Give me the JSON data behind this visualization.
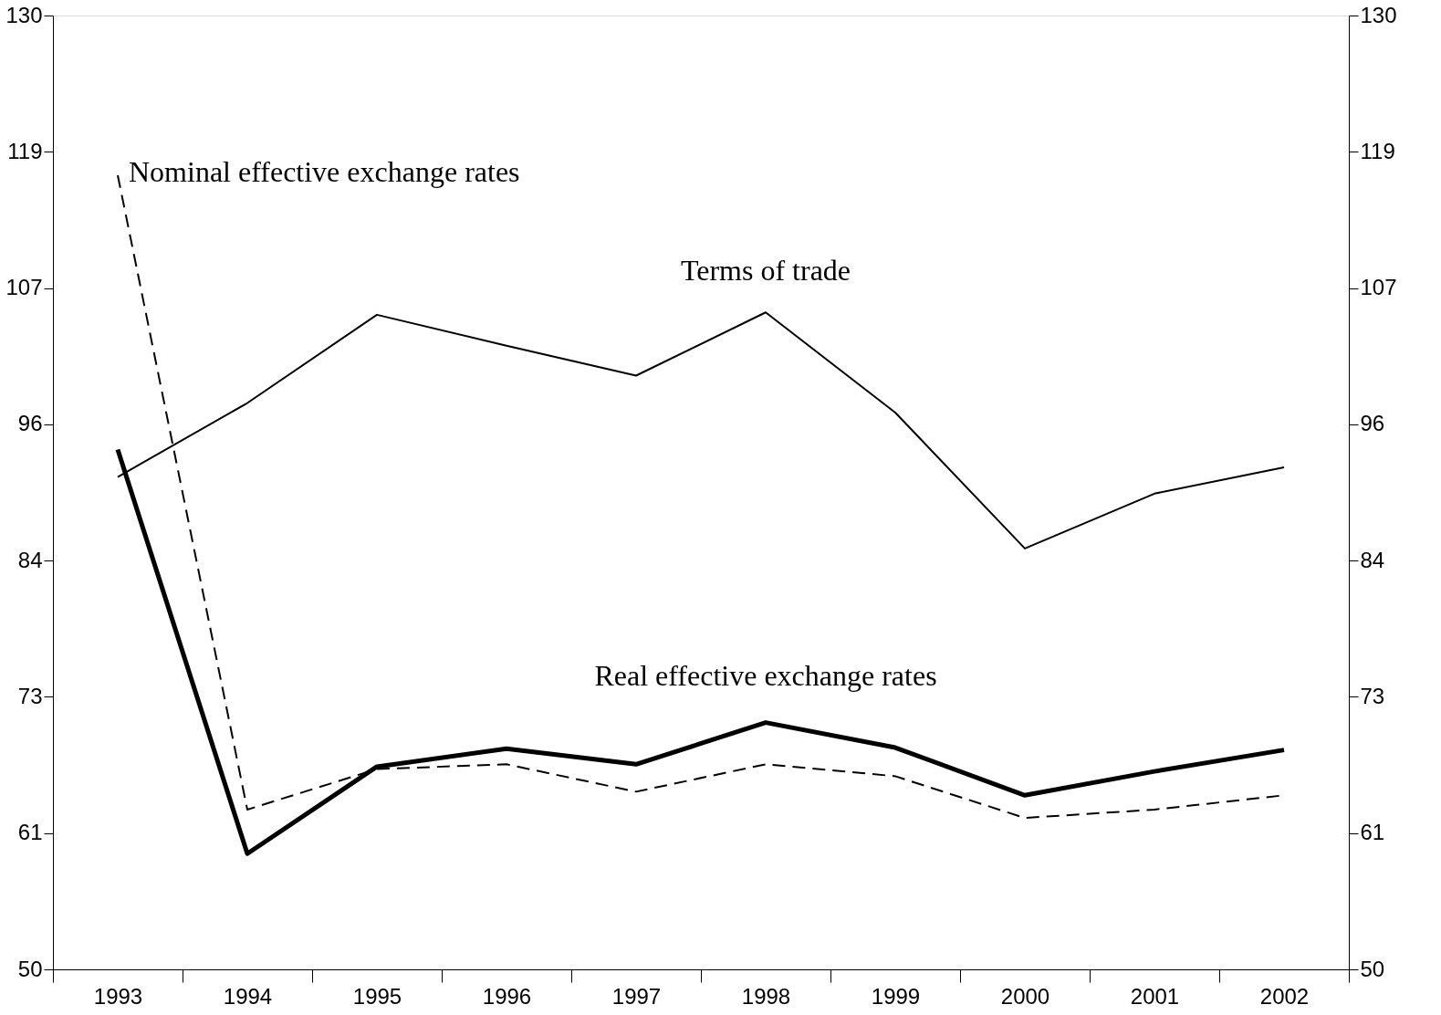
{
  "chart_data": {
    "type": "line",
    "categories": [
      "1993",
      "1994",
      "1995",
      "1996",
      "1997",
      "1998",
      "1999",
      "2000",
      "2001",
      "2002"
    ],
    "series": [
      {
        "name": "Terms of trade",
        "color": "#000000",
        "line_style": "solid",
        "values": [
          91.3,
          97.5,
          104.9,
          102.3,
          99.8,
          105.1,
          96.7,
          85.3,
          89.9,
          92.1
        ]
      },
      {
        "name": "Real effective exchange rates",
        "color": "#000000",
        "line_style": "solid",
        "values": [
          93.6,
          59.7,
          67.0,
          68.5,
          67.2,
          70.7,
          68.6,
          64.6,
          66.6,
          68.4
        ]
      },
      {
        "name": "Nominal effective exchange rates",
        "color": "#000000",
        "line_style": "dashed",
        "values": [
          116.6,
          63.4,
          66.8,
          67.2,
          64.9,
          67.2,
          66.2,
          62.7,
          63.4,
          64.6
        ]
      }
    ],
    "ylim": [
      50,
      130
    ],
    "yticks": [
      50,
      {
        "value": 61.43,
        "label": "61"
      },
      {
        "value": 72.86,
        "label": "73"
      },
      {
        "value": 84.29,
        "label": "84"
      },
      {
        "value": 95.71,
        "label": "96"
      },
      {
        "value": 107.14,
        "label": "107"
      },
      {
        "value": 118.57,
        "label": "119"
      },
      130
    ],
    "y2lim": [
      50,
      130
    ],
    "y2ticks": [
      50,
      {
        "value": 61.43,
        "label": "61"
      },
      {
        "value": 72.86,
        "label": "73"
      },
      {
        "value": 84.29,
        "label": "84"
      },
      {
        "value": 95.71,
        "label": "96"
      },
      {
        "value": 107.14,
        "label": "107"
      },
      {
        "value": 118.57,
        "label": "119"
      },
      130
    ],
    "grid": false,
    "legend": false,
    "marker": "none"
  }
}
